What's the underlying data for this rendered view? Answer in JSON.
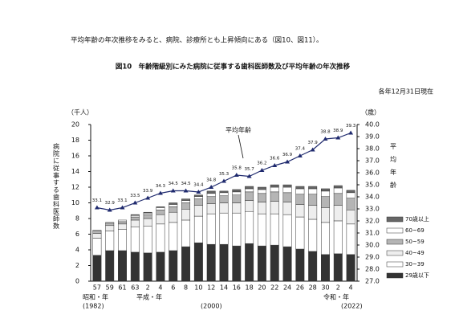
{
  "header": {
    "text": "平均年齢の年次推移をみると、病院、診療所とも上昇傾向にある（図10、図11）。"
  },
  "chart_data": {
    "type": "bar",
    "stacked": true,
    "title": "図10　年齢階級別にみた病院に従事する歯科医師数及び平均年齢の年次推移",
    "subtitle": "各年12月31日現在",
    "y_unit": "（千人）",
    "y2_unit": "（歳）",
    "ylabel": "病院に従事する歯科医師数",
    "y2label": "平均年齢",
    "annotation": "平均年齢",
    "era_labels": [
      "昭和・年",
      "(1982)",
      "平成・年",
      "(2000)",
      "令和・年",
      "(2022)"
    ],
    "categories": [
      "57",
      "59",
      "61",
      "63",
      "2",
      "4",
      "6",
      "8",
      "10",
      "12",
      "14",
      "16",
      "18",
      "20",
      "22",
      "24",
      "26",
      "28",
      "30",
      "2",
      "4"
    ],
    "ylim": [
      0,
      20
    ],
    "yticks": [
      0,
      2,
      4,
      6,
      8,
      10,
      12,
      14,
      16,
      18,
      20
    ],
    "y2lim": [
      27,
      40
    ],
    "y2ticks": [
      {
        "value": 27,
        "label": "27.0"
      },
      {
        "value": 28,
        "label": "28.0"
      },
      {
        "value": 29,
        "label": "29.0"
      },
      {
        "value": 30,
        "label": "30.0"
      },
      {
        "value": 31,
        "label": "31.0"
      },
      {
        "value": 32,
        "label": "32.0"
      },
      {
        "value": 33,
        "label": "33.0"
      },
      {
        "value": 34,
        "label": "34.0"
      },
      {
        "value": 35,
        "label": "35.0"
      },
      {
        "value": 36,
        "label": "36.0"
      },
      {
        "value": 37,
        "label": "37.0"
      },
      {
        "value": 38,
        "label": "38.0"
      },
      {
        "value": 39,
        "label": "39.0"
      },
      {
        "value": 40,
        "label": "40.0"
      }
    ],
    "series": [
      {
        "name": "29歳以下",
        "color": "#333333",
        "values": [
          3.3,
          3.9,
          3.9,
          3.7,
          3.6,
          3.7,
          3.9,
          4.4,
          4.9,
          4.7,
          4.7,
          4.5,
          4.8,
          4.5,
          4.6,
          4.4,
          4.1,
          3.8,
          3.4,
          3.5,
          3.4
        ]
      },
      {
        "name": "30~39",
        "color": "#ffffff",
        "values": [
          2.2,
          2.5,
          2.7,
          3.2,
          3.4,
          3.6,
          3.6,
          3.4,
          3.4,
          3.9,
          4.0,
          4.2,
          4.1,
          4.1,
          4.0,
          4.1,
          4.1,
          4.1,
          4.1,
          4.2,
          3.9
        ]
      },
      {
        "name": "40~49",
        "color": "#eeeeee",
        "values": [
          0.6,
          0.7,
          0.7,
          0.9,
          1.0,
          1.2,
          1.3,
          1.4,
          1.4,
          1.3,
          1.3,
          1.3,
          1.4,
          1.5,
          1.6,
          1.6,
          1.6,
          1.8,
          1.9,
          2.0,
          1.8
        ]
      },
      {
        "name": "50~59",
        "color": "#b5b5b5",
        "values": [
          0.3,
          0.3,
          0.3,
          0.4,
          0.5,
          0.6,
          0.7,
          0.8,
          0.8,
          0.9,
          0.9,
          1.0,
          1.1,
          1.1,
          1.2,
          1.2,
          1.3,
          1.4,
          1.4,
          1.5,
          1.5
        ]
      },
      {
        "name": "60~69",
        "color": "#ffffff",
        "values": [
          0.1,
          0.1,
          0.2,
          0.2,
          0.2,
          0.3,
          0.3,
          0.3,
          0.3,
          0.4,
          0.4,
          0.4,
          0.4,
          0.5,
          0.6,
          0.7,
          0.7,
          0.7,
          0.7,
          0.7,
          0.7
        ]
      },
      {
        "name": "70歳以上",
        "color": "#666666",
        "values": [
          0.0,
          0.0,
          0.0,
          0.1,
          0.1,
          0.1,
          0.2,
          0.2,
          0.2,
          0.3,
          0.2,
          0.3,
          0.3,
          0.3,
          0.3,
          0.3,
          0.3,
          0.3,
          0.3,
          0.3,
          0.3
        ]
      }
    ],
    "line": {
      "type": "line",
      "axis": "y2",
      "color": "#1f2a6e",
      "values": [
        33.1,
        32.9,
        33.1,
        33.5,
        33.9,
        34.3,
        34.5,
        34.5,
        34.4,
        34.8,
        35.3,
        35.8,
        35.7,
        36.2,
        36.6,
        36.9,
        37.4,
        37.9,
        38.8,
        38.9,
        39.3
      ]
    }
  }
}
